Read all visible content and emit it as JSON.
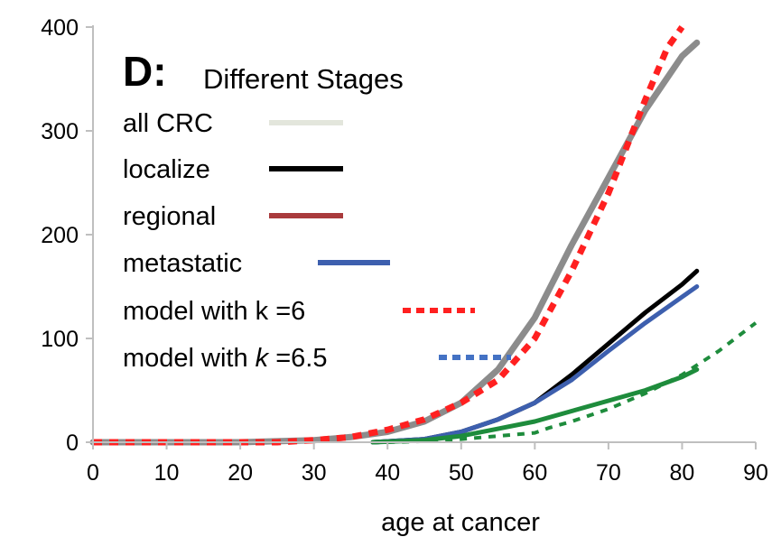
{
  "panel": {
    "letter": "D:",
    "subtitle": "Different Stages"
  },
  "colors": {
    "all": "#8c8c8c",
    "all_legend": "#e3e6dc",
    "localize": "#000000",
    "regional": "#a93a3c",
    "metastatic": "#3d5fae",
    "model_k6": "#ff2020",
    "model_k65": "#4472c4",
    "model_k65_drawn": "#1e8c3c",
    "green_curve": "#1e8c3c"
  },
  "legend": [
    {
      "label": "all CRC",
      "style": "solid",
      "color_key": "all_legend"
    },
    {
      "label": "localize",
      "style": "solid",
      "color_key": "localize"
    },
    {
      "label": "regional",
      "style": "solid",
      "color_key": "regional"
    },
    {
      "label": "metastatic",
      "style": "solid",
      "color_key": "metastatic"
    },
    {
      "label": "model with k =6",
      "style": "dotted",
      "color_key": "model_k6"
    },
    {
      "label_parts": [
        "model with ",
        "k",
        " =6.5"
      ],
      "style": "dotted",
      "color_key": "model_k65"
    }
  ],
  "chart_data": {
    "type": "line",
    "xlabel": "age at cancer",
    "ylabel": "",
    "xlim": [
      0,
      90
    ],
    "ylim": [
      0,
      400
    ],
    "xticks": [
      0,
      10,
      20,
      30,
      40,
      50,
      60,
      70,
      80,
      90
    ],
    "yticks": [
      0,
      100,
      200,
      300,
      400
    ],
    "grid": false,
    "legend_position": "top-left",
    "series": [
      {
        "name": "all CRC",
        "style": "solid",
        "color_key": "all",
        "width": 7,
        "x": [
          0,
          10,
          20,
          25,
          30,
          35,
          40,
          45,
          50,
          55,
          60,
          65,
          70,
          75,
          80,
          82
        ],
        "y": [
          0,
          0,
          0,
          1,
          2,
          5,
          10,
          20,
          38,
          70,
          120,
          190,
          255,
          320,
          372,
          385
        ]
      },
      {
        "name": "model with k =6",
        "style": "dotted",
        "color_key": "model_k6",
        "width": 7,
        "x": [
          0,
          10,
          20,
          25,
          30,
          35,
          40,
          45,
          50,
          55,
          60,
          65,
          70,
          75,
          78,
          80
        ],
        "y": [
          0,
          0,
          0,
          0,
          2,
          5,
          12,
          22,
          38,
          60,
          100,
          165,
          240,
          330,
          380,
          400
        ]
      },
      {
        "name": "localize",
        "style": "solid",
        "color_key": "localize",
        "width": 5,
        "x": [
          38,
          45,
          50,
          55,
          60,
          65,
          70,
          75,
          80,
          82
        ],
        "y": [
          0,
          3,
          10,
          22,
          38,
          65,
          95,
          125,
          152,
          165
        ]
      },
      {
        "name": "metastatic",
        "style": "solid",
        "color_key": "metastatic",
        "width": 5,
        "x": [
          38,
          45,
          50,
          55,
          60,
          65,
          70,
          75,
          80,
          82
        ],
        "y": [
          0,
          3,
          10,
          22,
          38,
          60,
          88,
          115,
          140,
          150
        ]
      },
      {
        "style": "solid",
        "color_key": "green_curve",
        "width": 5,
        "x": [
          38,
          45,
          50,
          55,
          60,
          65,
          70,
          75,
          80,
          82
        ],
        "y": [
          0,
          2,
          6,
          13,
          20,
          30,
          40,
          50,
          63,
          70
        ]
      },
      {
        "style": "dotted",
        "color_key": "model_k65_drawn",
        "width": 4,
        "x": [
          40,
          45,
          50,
          55,
          60,
          62,
          65,
          70,
          75,
          80,
          85,
          90
        ],
        "y": [
          0,
          1,
          3,
          6,
          9,
          14,
          20,
          32,
          47,
          65,
          88,
          115
        ]
      }
    ]
  }
}
